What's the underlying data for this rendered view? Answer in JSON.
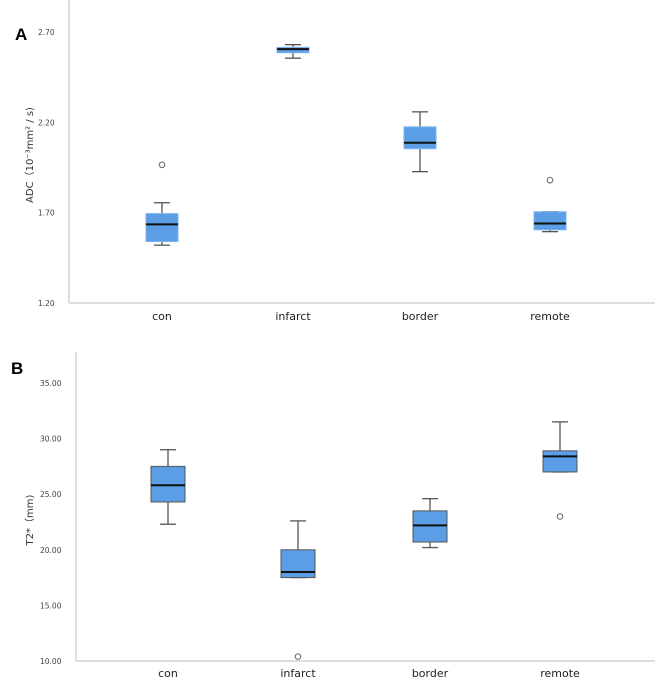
{
  "chart_data": [
    {
      "type": "box",
      "panel_label": "A",
      "ylabel": "ADC（10⁻³mm² / s)",
      "ylim": [
        1.2,
        2.85
      ],
      "yticks": [
        "1.20",
        "1.70",
        "2.20",
        "2.70"
      ],
      "ytick_values": [
        1.2,
        1.7,
        2.2,
        2.7
      ],
      "categories": [
        "con",
        "infarct",
        "border",
        "remote"
      ],
      "boxes": [
        {
          "min": 1.52,
          "q1": 1.54,
          "median": 1.635,
          "q3": 1.695,
          "max": 1.755,
          "outliers": [
            1.965
          ]
        },
        {
          "min": 2.555,
          "q1": 2.585,
          "median": 2.605,
          "q3": 2.615,
          "max": 2.63,
          "outliers": []
        },
        {
          "min": 1.927,
          "q1": 2.054,
          "median": 2.087,
          "q3": 2.175,
          "max": 2.258,
          "outliers": []
        },
        {
          "min": 1.595,
          "q1": 1.605,
          "median": 1.64,
          "q3": 1.705,
          "max": 1.705,
          "outliers": [
            1.88
          ]
        }
      ],
      "box_color": "#5b9ee6",
      "grid": false
    },
    {
      "type": "box",
      "panel_label": "B",
      "ylabel": "T2*（mm)",
      "ylim": [
        10,
        37.5
      ],
      "yticks": [
        "10.00",
        "15.00",
        "20.00",
        "25.00",
        "30.00",
        "35.00"
      ],
      "ytick_values": [
        10,
        15,
        20,
        25,
        30,
        35
      ],
      "categories": [
        "con",
        "infarct",
        "border",
        "remote"
      ],
      "boxes": [
        {
          "min": 22.3,
          "q1": 24.3,
          "median": 25.8,
          "q3": 27.5,
          "max": 29.0,
          "outliers": []
        },
        {
          "min": 17.5,
          "q1": 17.5,
          "median": 18.0,
          "q3": 20.0,
          "max": 22.6,
          "outliers": [
            10.4
          ]
        },
        {
          "min": 20.2,
          "q1": 20.7,
          "median": 22.2,
          "q3": 23.5,
          "max": 24.6,
          "outliers": []
        },
        {
          "min": 27.0,
          "q1": 27.0,
          "median": 28.4,
          "q3": 28.9,
          "max": 31.5,
          "outliers": [
            23.0
          ]
        }
      ],
      "box_color": "#5b9ee6",
      "grid": false
    }
  ]
}
